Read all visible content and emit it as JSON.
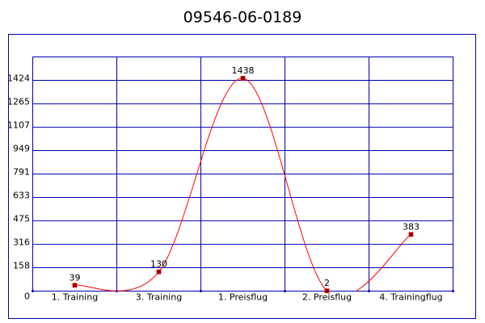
{
  "chart_data": {
    "type": "line",
    "title": "09546-06-0189",
    "categories": [
      "1. Training",
      "3. Training",
      "1. Preisflug",
      "2. Preisflug",
      "4. Trainingflug"
    ],
    "series": [
      {
        "color": "#ff0000",
        "values": [
          39,
          130,
          1438,
          2,
          383
        ],
        "value_labels": [
          "39",
          "130",
          "1438",
          "2",
          "383"
        ]
      }
    ],
    "ylim": [
      0,
      1582
    ],
    "yticks": [
      0,
      158,
      316,
      475,
      633,
      791,
      949,
      1107,
      1265,
      1424
    ],
    "grid": true
  }
}
